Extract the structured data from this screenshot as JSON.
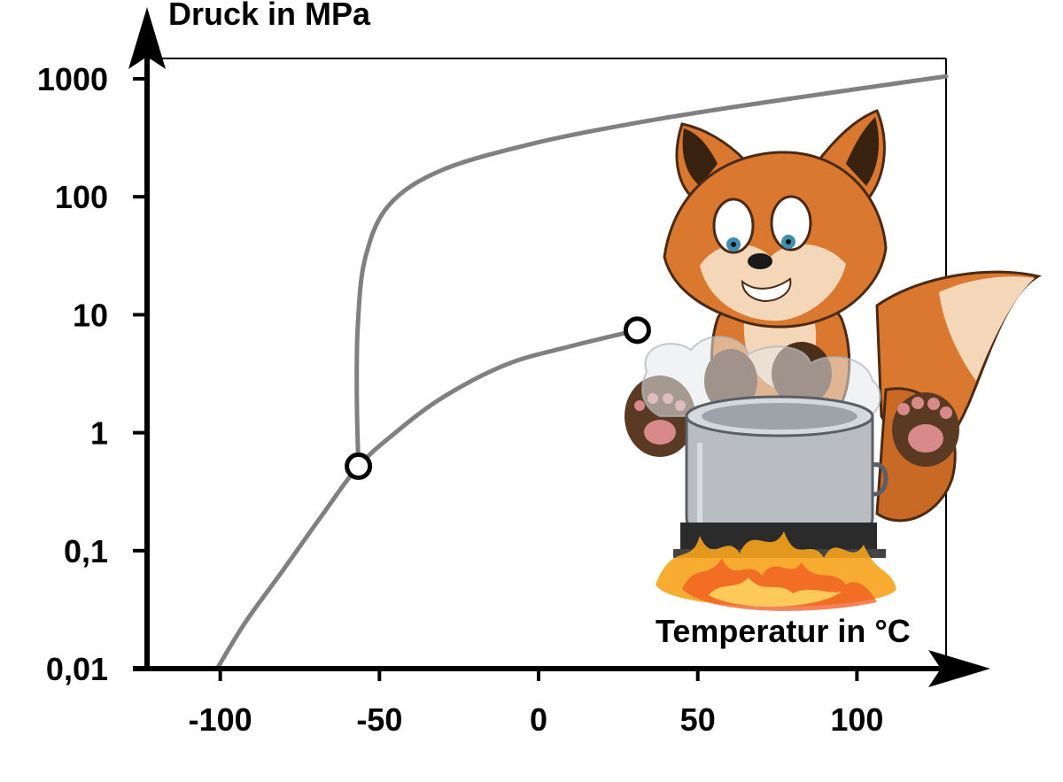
{
  "chart_data": {
    "type": "line",
    "title": "",
    "xlabel": "Temperatur in °C",
    "ylabel": "Druck in MPa",
    "xlim": [
      -123,
      128
    ],
    "ylim": [
      0.01,
      1000
    ],
    "y_scale": "log",
    "x_ticks": [
      {
        "value": -100,
        "label": "-100"
      },
      {
        "value": -50,
        "label": "-50"
      },
      {
        "value": 0,
        "label": "0"
      },
      {
        "value": 50,
        "label": "50"
      },
      {
        "value": 100,
        "label": "100"
      }
    ],
    "y_ticks": [
      {
        "value": 0.01,
        "label": "0,01"
      },
      {
        "value": 0.1,
        "label": "0,1"
      },
      {
        "value": 1,
        "label": "1"
      },
      {
        "value": 10,
        "label": "10"
      },
      {
        "value": 100,
        "label": "100"
      },
      {
        "value": 1000,
        "label": "1000"
      }
    ],
    "grid": false,
    "legend": "none",
    "series": [
      {
        "key": "sublimation-vapor",
        "color": "#808080",
        "points": [
          [
            -101,
            0.01
          ],
          [
            -92,
            0.025
          ],
          [
            -80,
            0.07
          ],
          [
            -68,
            0.2
          ],
          [
            -56.6,
            0.52
          ],
          [
            -45,
            1.0
          ],
          [
            -30,
            2.0
          ],
          [
            -10,
            3.8
          ],
          [
            10,
            5.4
          ],
          [
            31,
            7.4
          ]
        ]
      },
      {
        "key": "melting",
        "color": "#808080",
        "points": [
          [
            -56.6,
            0.52
          ],
          [
            -57.1,
            2.0
          ],
          [
            -56.8,
            8.0
          ],
          [
            -54.5,
            30
          ],
          [
            -47,
            85
          ],
          [
            -30,
            170
          ],
          [
            0,
            290
          ],
          [
            30,
            420
          ],
          [
            60,
            570
          ],
          [
            100,
            820
          ],
          [
            128,
            1050
          ]
        ]
      }
    ],
    "markers": [
      {
        "key": "triple-point",
        "x": -56.6,
        "y": 0.52
      },
      {
        "key": "critical-point",
        "x": 31,
        "y": 7.4
      }
    ]
  },
  "colors": {
    "curve": "#808080",
    "axis": "#000000",
    "fox_fur": "#d9782e",
    "fox_light": "#f4d6b8",
    "fox_dark": "#4a2a14",
    "pot": "#b9bcc0",
    "flame": "#f7a21b"
  },
  "illustration": {
    "icon": "fox-cooking-pot-illustration"
  }
}
